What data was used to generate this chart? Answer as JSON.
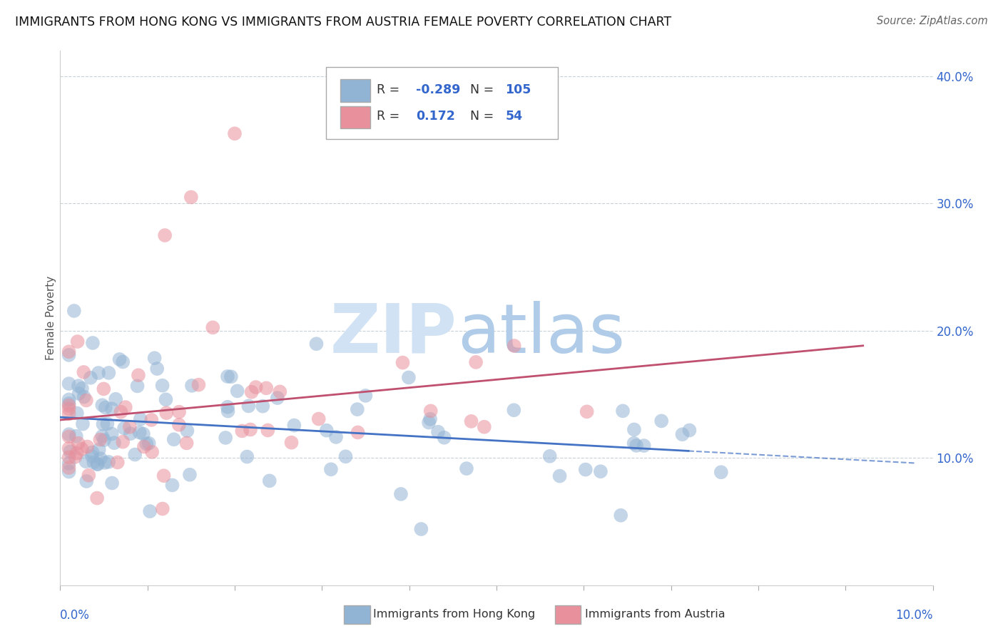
{
  "title": "IMMIGRANTS FROM HONG KONG VS IMMIGRANTS FROM AUSTRIA FEMALE POVERTY CORRELATION CHART",
  "source": "Source: ZipAtlas.com",
  "ylabel": "Female Poverty",
  "color_hk": "#92b4d4",
  "color_at": "#e8909c",
  "color_hk_line": "#4472c4",
  "color_at_line": "#c05070",
  "watermark_zip": "#c8daf0",
  "watermark_atlas": "#a0bce0",
  "legend_blue": "#3366cc",
  "x_min": 0.0,
  "x_max": 0.1,
  "y_min": 0.0,
  "y_max": 0.42,
  "hk_N": 105,
  "at_N": 54,
  "hk_R": -0.289,
  "at_R": 0.172
}
